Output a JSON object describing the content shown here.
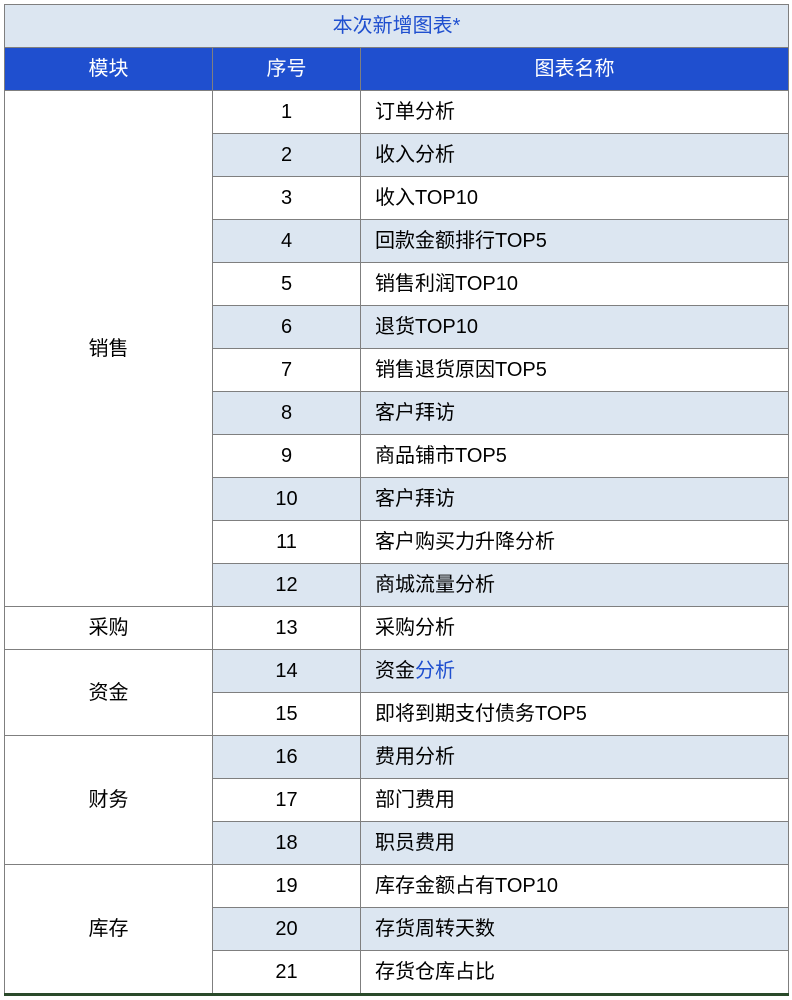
{
  "table": {
    "title": "本次新增图表*",
    "headers": {
      "module": "模块",
      "seq": "序号",
      "name": "图表名称"
    },
    "groups": [
      {
        "module": "销售",
        "rows": [
          {
            "seq": "1",
            "name": "订单分析",
            "alt": false
          },
          {
            "seq": "2",
            "name": "收入分析",
            "alt": true
          },
          {
            "seq": "3",
            "name": "收入TOP10",
            "alt": false
          },
          {
            "seq": "4",
            "name": "回款金额排行TOP5",
            "alt": true
          },
          {
            "seq": "5",
            "name": "销售利润TOP10",
            "alt": false
          },
          {
            "seq": "6",
            "name": "退货TOP10",
            "alt": true
          },
          {
            "seq": "7",
            "name": "销售退货原因TOP5",
            "alt": false
          },
          {
            "seq": "8",
            "name": "客户拜访",
            "alt": true
          },
          {
            "seq": "9",
            "name": "商品铺市TOP5",
            "alt": false
          },
          {
            "seq": "10",
            "name": "客户拜访",
            "alt": true
          },
          {
            "seq": "11",
            "name": "客户购买力升降分析",
            "alt": false
          },
          {
            "seq": "12",
            "name": "商城流量分析",
            "alt": true
          }
        ]
      },
      {
        "module": "采购",
        "rows": [
          {
            "seq": "13",
            "name": "采购分析",
            "alt": false
          }
        ]
      },
      {
        "module": "资金",
        "rows": [
          {
            "seq": "14",
            "name_prefix": "资金",
            "name_link": "分析",
            "alt": true,
            "has_link": true
          },
          {
            "seq": "15",
            "name": "即将到期支付债务TOP5",
            "alt": false
          }
        ]
      },
      {
        "module": "财务",
        "rows": [
          {
            "seq": "16",
            "name": "费用分析",
            "alt": true
          },
          {
            "seq": "17",
            "name": "部门费用",
            "alt": false
          },
          {
            "seq": "18",
            "name": "职员费用",
            "alt": true
          }
        ]
      },
      {
        "module": "库存",
        "rows": [
          {
            "seq": "19",
            "name": "库存金额占有TOP10",
            "alt": false
          },
          {
            "seq": "20",
            "name": "存货周转天数",
            "alt": true
          },
          {
            "seq": "21",
            "name": "存货仓库占比",
            "alt": false
          }
        ]
      }
    ],
    "colors": {
      "title_bg": "#dce6f1",
      "title_text": "#1f4fcf",
      "header_bg": "#1f4fcf",
      "header_text": "#ffffff",
      "row_alt_bg": "#dce6f1",
      "row_white_bg": "#ffffff",
      "border": "#7f7f7f",
      "text": "#000000",
      "link": "#1f4fcf",
      "bottom_border": "#2a4a2a"
    },
    "font_size": 20
  }
}
